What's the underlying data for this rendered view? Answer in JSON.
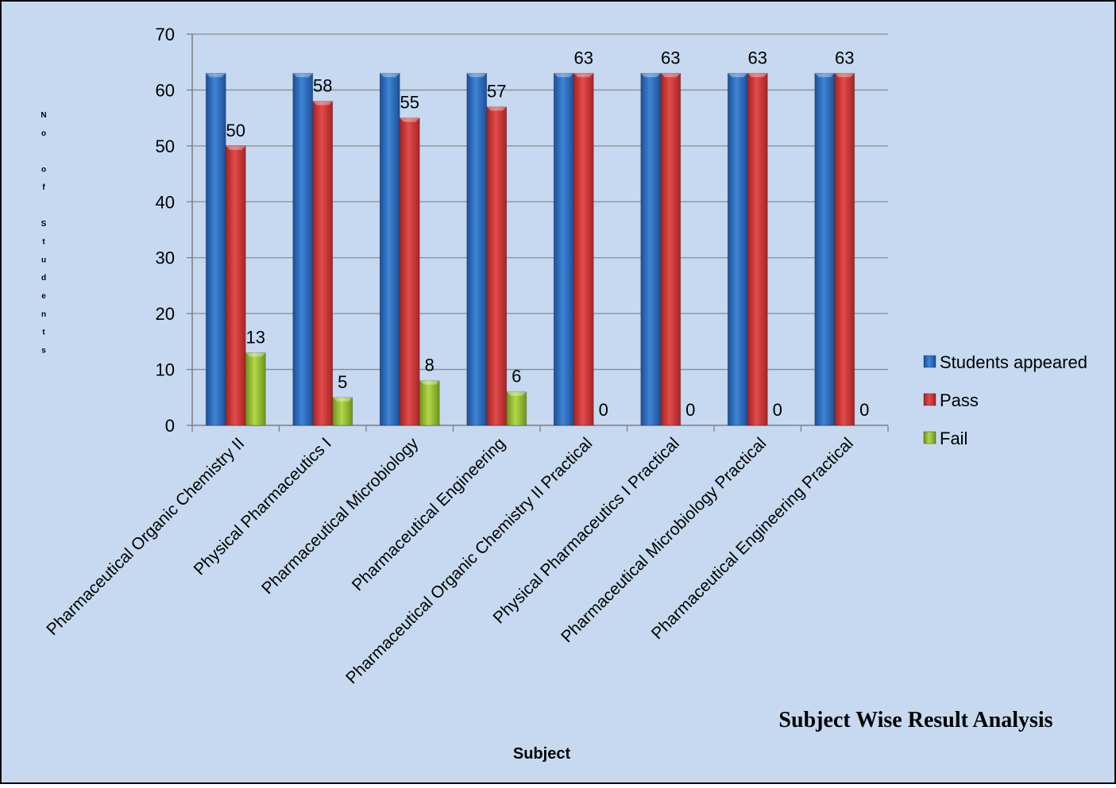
{
  "chart_data": {
    "type": "bar",
    "title": "Subject Wise Result Analysis",
    "xlabel": "Subject",
    "ylabel": "No of Students",
    "ylim": [
      0,
      70
    ],
    "yticks": [
      0,
      10,
      20,
      30,
      40,
      50,
      60,
      70
    ],
    "grid": true,
    "legend_position": "right",
    "categories": [
      "Pharmaceutical Organic Chemistry II",
      "Physical Pharmaceutics I",
      "Pharmaceutical Microbiology",
      "Pharmaceutical Engineering",
      "Pharmaceutical Organic Chemistry II Practical",
      "Physical Pharmaceutics I Practical",
      "Pharmaceutical Microbiology Practical",
      "Pharmaceutical Engineering Practical"
    ],
    "series": [
      {
        "name": "Students appeared",
        "color": "#2E6FC0",
        "values": [
          63,
          63,
          63,
          63,
          63,
          63,
          63,
          63
        ],
        "labels": [
          "",
          "",
          "",
          "",
          "",
          "",
          "",
          ""
        ]
      },
      {
        "name": "Pass",
        "color": "#D63C3C",
        "values": [
          50,
          58,
          55,
          57,
          63,
          63,
          63,
          63
        ],
        "labels": [
          "50",
          "58",
          "55",
          "57",
          "63",
          "63",
          "63",
          "63"
        ]
      },
      {
        "name": "Fail",
        "color": "#9BC232",
        "values": [
          13,
          5,
          8,
          6,
          0,
          0,
          0,
          0
        ],
        "labels": [
          "13",
          "5",
          "8",
          "6",
          "0",
          "0",
          "0",
          "0"
        ]
      }
    ]
  },
  "colors": {
    "background": "#C6D9F0",
    "grid": "#8C8C8C",
    "axis": "#7F7F7F",
    "border": "#000000"
  }
}
